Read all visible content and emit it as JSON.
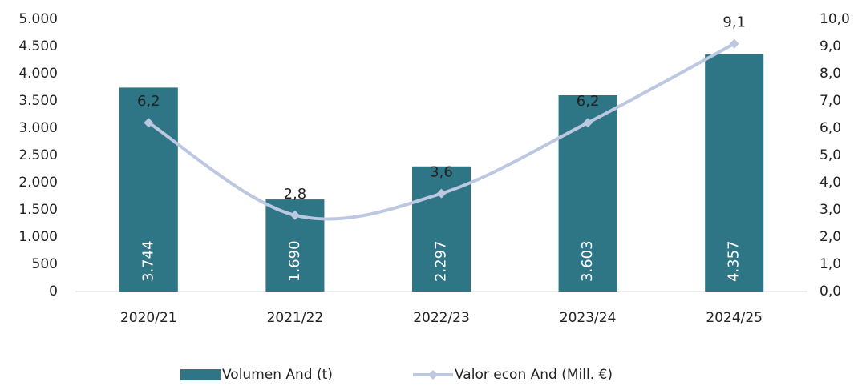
{
  "chart_data": {
    "type": "bar-line",
    "categories": [
      "2020/21",
      "2021/22",
      "2022/23",
      "2023/24",
      "2024/25"
    ],
    "series": [
      {
        "name": "Volumen And (t)",
        "type": "bar",
        "color": "#2e7585",
        "values": [
          3744,
          1690,
          2297,
          3603,
          4357
        ],
        "value_labels": [
          "3.744",
          "1.690",
          "2.297",
          "3.603",
          "4.357"
        ]
      },
      {
        "name": "Valor econ And (Mill. €)",
        "type": "line",
        "axis": "y2",
        "color": "#bcc7e0",
        "values": [
          6.2,
          2.8,
          3.6,
          6.2,
          9.1
        ],
        "value_labels": [
          "6,2",
          "2,8",
          "3,6",
          "6,2",
          "9,1"
        ]
      }
    ],
    "ylim": [
      0,
      5000
    ],
    "yticks": [
      0,
      500,
      {
        "value": 1000,
        "label": "1.000"
      },
      {
        "value": 1500,
        "label": "1.500"
      },
      {
        "value": 2000,
        "label": "2.000"
      },
      {
        "value": 2500,
        "label": "2.500"
      },
      {
        "value": 3000,
        "label": "3.000"
      },
      {
        "value": 3500,
        "label": "3.500"
      },
      {
        "value": 4000,
        "label": "4.000"
      },
      {
        "value": 4500,
        "label": "4.500"
      },
      {
        "value": 5000,
        "label": "5.000"
      }
    ],
    "y2lim": [
      0,
      10
    ],
    "y2ticks": [
      {
        "value": 0,
        "label": "0,0"
      },
      {
        "value": 1,
        "label": "1,0"
      },
      {
        "value": 2,
        "label": "2,0"
      },
      {
        "value": 3,
        "label": "3,0"
      },
      {
        "value": 4,
        "label": "4,0"
      },
      {
        "value": 5,
        "label": "5,0"
      },
      {
        "value": 6,
        "label": "6,0"
      },
      {
        "value": 7,
        "label": "7,0"
      },
      {
        "value": 8,
        "label": "8,0"
      },
      {
        "value": 9,
        "label": "9,0"
      },
      {
        "value": 10,
        "label": "10,0"
      }
    ],
    "grid": false,
    "legend": "bottom"
  }
}
